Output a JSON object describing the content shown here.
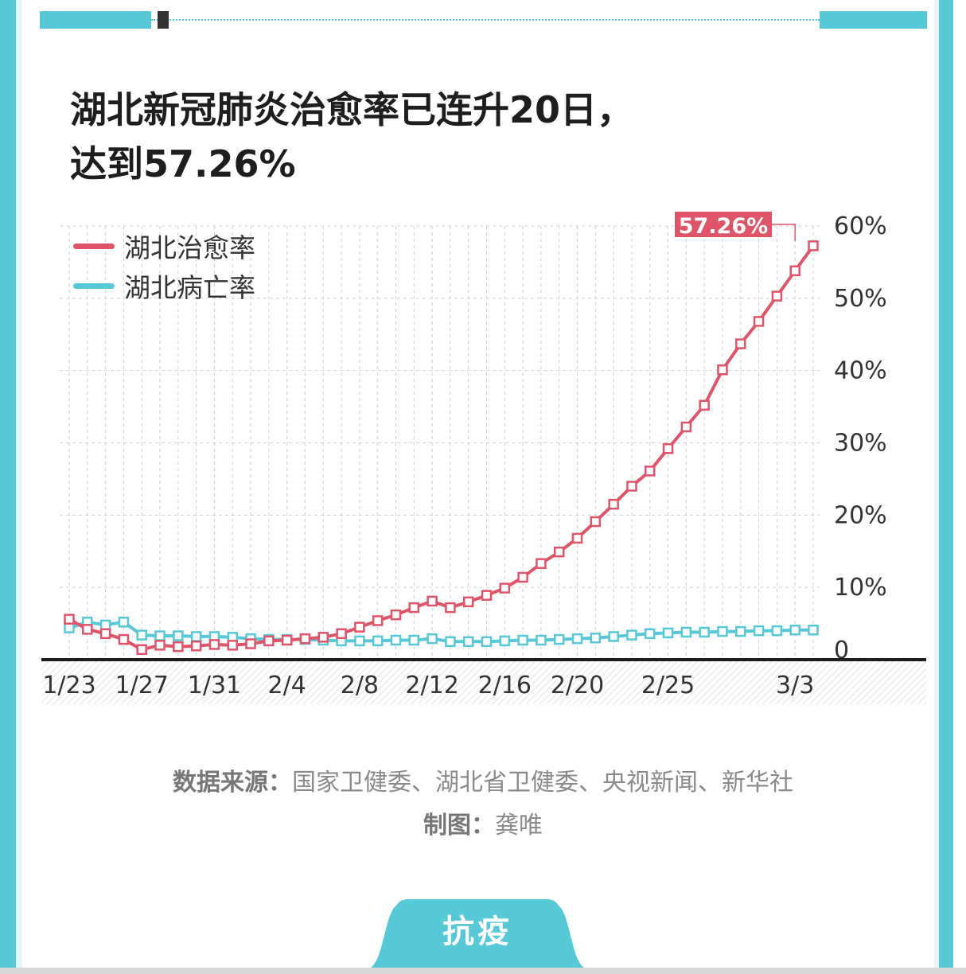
{
  "title_line1": "湖北新冠肺炎治愈率已连升20日，",
  "title_line2": "达到57.26%",
  "colors": {
    "cure": "#e0546a",
    "death": "#57c8d6",
    "frame": "#57c8d6"
  },
  "legend": [
    {
      "label": "湖北治愈率",
      "color": "#e0546a"
    },
    {
      "label": "湖北病亡率",
      "color": "#57c8d6"
    }
  ],
  "source": {
    "label": "数据来源：",
    "text": "国家卫健委、湖北省卫健委、央视新闻、新华社"
  },
  "credit": {
    "label": "制图：",
    "text": "龚唯"
  },
  "tag": "抗疫",
  "chart_data": {
    "type": "line",
    "ylim": [
      0,
      60
    ],
    "y_ticks": [
      "0",
      "10%",
      "20%",
      "30%",
      "40%",
      "50%",
      "60%"
    ],
    "y_tick_values": [
      0,
      10,
      20,
      30,
      40,
      50,
      60
    ],
    "x_tick_labels": [
      {
        "label": "1/23",
        "index": 0
      },
      {
        "label": "1/27",
        "index": 4
      },
      {
        "label": "1/31",
        "index": 8
      },
      {
        "label": "2/4",
        "index": 12
      },
      {
        "label": "2/8",
        "index": 16
      },
      {
        "label": "2/12",
        "index": 20
      },
      {
        "label": "2/16",
        "index": 24
      },
      {
        "label": "2/20",
        "index": 28
      },
      {
        "label": "2/25",
        "index": 33
      },
      {
        "label": "3/3",
        "index": 40
      }
    ],
    "annotation": {
      "text": "57.26%",
      "index": 40,
      "value": 57.26
    },
    "series": [
      {
        "name": "湖北治愈率",
        "color": "#e0546a",
        "values": [
          5.6,
          4.2,
          3.6,
          2.8,
          1.4,
          2.0,
          1.8,
          1.9,
          2.1,
          2.0,
          2.2,
          2.6,
          2.7,
          2.9,
          3.1,
          3.6,
          4.5,
          5.4,
          6.2,
          7.2,
          8.1,
          7.2,
          8.0,
          8.9,
          9.9,
          11.4,
          13.3,
          14.9,
          16.8,
          19.1,
          21.5,
          24.0,
          26.1,
          29.2,
          32.2,
          35.2,
          40.1,
          43.7,
          46.8,
          50.3,
          53.8,
          57.26
        ]
      },
      {
        "name": "湖北病亡率",
        "color": "#57c8d6",
        "values": [
          4.4,
          5.2,
          4.8,
          5.2,
          3.4,
          3.3,
          3.3,
          3.2,
          3.2,
          3.1,
          2.9,
          2.8,
          2.8,
          2.8,
          2.7,
          2.6,
          2.6,
          2.6,
          2.7,
          2.7,
          2.9,
          2.5,
          2.5,
          2.5,
          2.6,
          2.7,
          2.7,
          2.8,
          2.9,
          3.0,
          3.2,
          3.4,
          3.6,
          3.7,
          3.8,
          3.8,
          3.9,
          3.9,
          4.0,
          4.0,
          4.1,
          4.1
        ]
      }
    ]
  }
}
